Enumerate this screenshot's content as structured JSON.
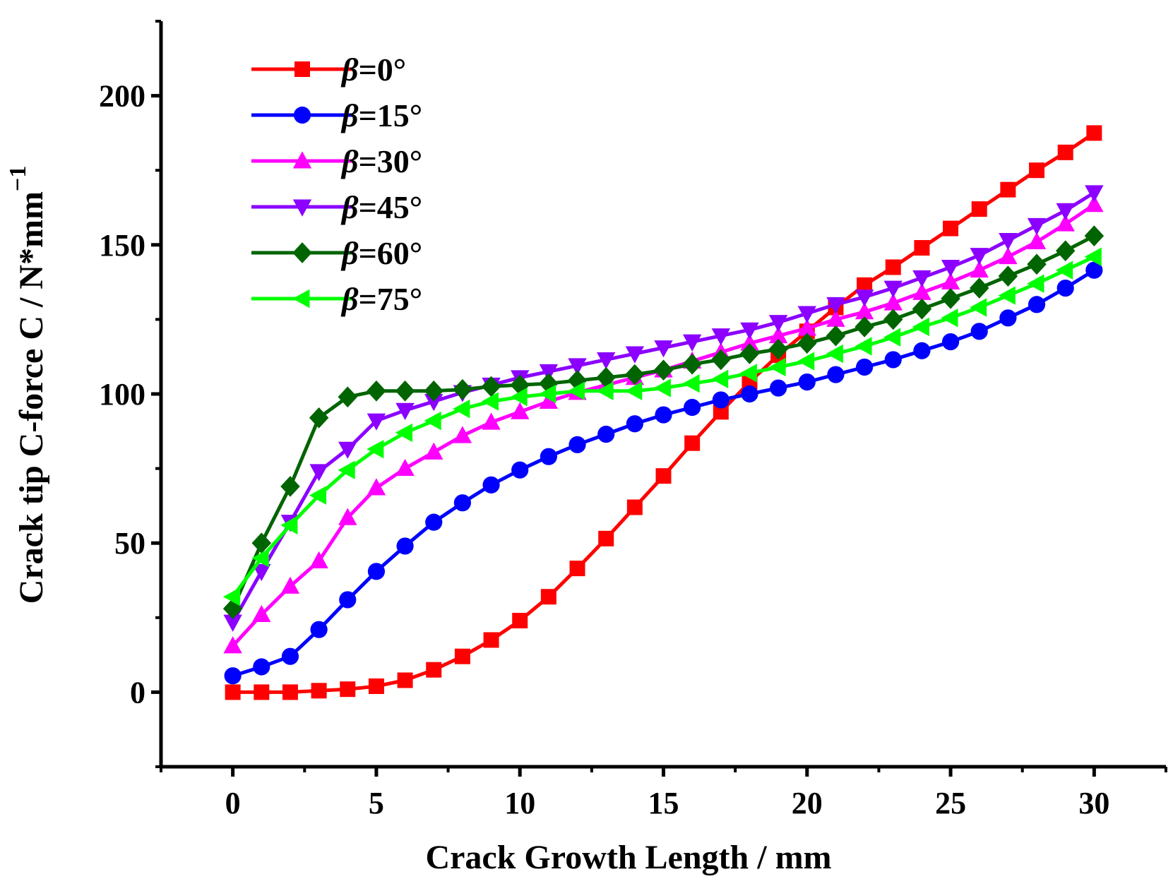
{
  "chart_data": {
    "type": "line",
    "title": "",
    "xlabel": "Crack Growth Length / mm",
    "ylabel": "Crack tip C-force C / N*mm",
    "ylabel_superscript": "−1",
    "xlim": [
      -2.5,
      32.5
    ],
    "ylim": [
      -25,
      225
    ],
    "xticks": [
      0,
      5,
      10,
      15,
      20,
      25,
      30
    ],
    "yticks": [
      0,
      50,
      100,
      150,
      200
    ],
    "xtick_labels": [
      "0",
      "5",
      "10",
      "15",
      "20",
      "25",
      "30"
    ],
    "ytick_labels": [
      "0",
      "50",
      "100",
      "150",
      "200"
    ],
    "legend_position": "top-left",
    "grid": false,
    "x": [
      0,
      1,
      2,
      3,
      4,
      5,
      6,
      7,
      8,
      9,
      10,
      11,
      12,
      13,
      14,
      15,
      16,
      17,
      18,
      19,
      20,
      21,
      22,
      23,
      24,
      25,
      26,
      27,
      28,
      29,
      30
    ],
    "series": [
      {
        "name": "β=0°",
        "beta": "β",
        "label_rest": "=0°",
        "color": "#ff0000",
        "marker": "square",
        "values": [
          0,
          0,
          0,
          0.5,
          1,
          2,
          4,
          7.5,
          12,
          17.5,
          24,
          32,
          41.5,
          51.5,
          62,
          72.5,
          83.5,
          94,
          104,
          113,
          121,
          129,
          136.5,
          142.5,
          149,
          155.5,
          162,
          168.5,
          175,
          181,
          187.5
        ]
      },
      {
        "name": "β=15°",
        "beta": "β",
        "label_rest": "=15°",
        "color": "#0000ff",
        "marker": "circle",
        "values": [
          5.5,
          8.5,
          12,
          21,
          31,
          40.5,
          49,
          57,
          63.5,
          69.5,
          74.5,
          79,
          83,
          86.5,
          90,
          93,
          95.5,
          98,
          100,
          102,
          104,
          106.5,
          109,
          111.5,
          114.5,
          117.5,
          121,
          125.5,
          130,
          135.5,
          141.5
        ]
      },
      {
        "name": "β=30°",
        "beta": "β",
        "label_rest": "=30°",
        "color": "#ff00ff",
        "marker": "triangle-up",
        "values": [
          15.5,
          26,
          35.5,
          44,
          58.5,
          68.5,
          75,
          80.5,
          86,
          90.5,
          94,
          97.5,
          100.5,
          103,
          105.5,
          108,
          111,
          114,
          117,
          119.5,
          122,
          125,
          127.5,
          130.5,
          134,
          137.5,
          141.5,
          146,
          151,
          157,
          163.5
        ]
      },
      {
        "name": "β=45°",
        "beta": "β",
        "label_rest": "=45°",
        "color": "#8b00ff",
        "marker": "triangle-down",
        "values": [
          23.5,
          40.5,
          57,
          74,
          81.5,
          91,
          94.5,
          97.5,
          100.5,
          103,
          105.5,
          107.5,
          109.5,
          111.5,
          113.5,
          115.5,
          117.5,
          119.5,
          121.5,
          124,
          127,
          130,
          132.5,
          135.5,
          139,
          142.5,
          146.5,
          151.5,
          156.5,
          161.5,
          167.5
        ]
      },
      {
        "name": "β=60°",
        "beta": "β",
        "label_rest": "=60°",
        "color": "#006400",
        "marker": "diamond",
        "values": [
          28,
          50,
          69,
          92,
          99,
          101,
          101,
          101,
          101.5,
          102.5,
          103,
          103.5,
          104.5,
          105.5,
          106.5,
          108,
          110,
          111.5,
          113.5,
          115,
          117,
          119.5,
          122.5,
          125,
          128.5,
          132,
          135.5,
          139.5,
          143.5,
          148,
          153
        ]
      },
      {
        "name": "β=75°",
        "beta": "β",
        "label_rest": "=75°",
        "color": "#00ff00",
        "marker": "triangle-left",
        "values": [
          32,
          45,
          56,
          66,
          74.5,
          81.5,
          87,
          91,
          95,
          97.5,
          99,
          100,
          101,
          101,
          101,
          102,
          103.5,
          105,
          107,
          109,
          111,
          113.5,
          116,
          119,
          122.5,
          125.5,
          129,
          133,
          137,
          141.5,
          146
        ]
      }
    ]
  }
}
